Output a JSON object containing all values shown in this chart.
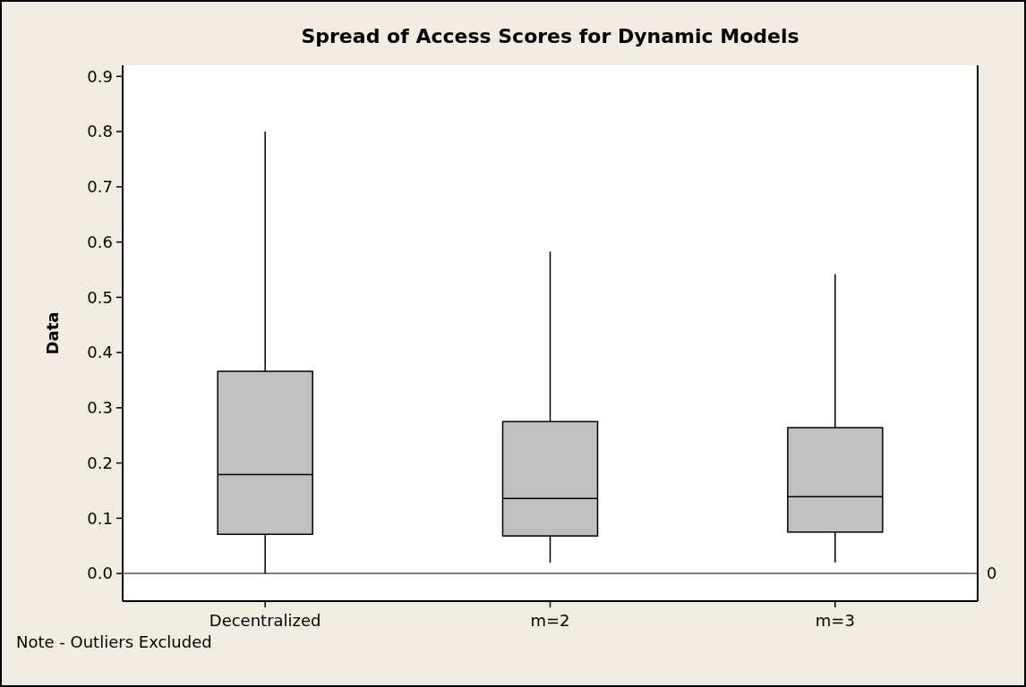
{
  "chart_data": {
    "type": "box",
    "title": "Spread of Access Scores for Dynamic Models",
    "ylabel": "Data",
    "categories": [
      "Decentralized",
      "m=2",
      "m=3"
    ],
    "color": "#c0c0c0",
    "boxes": [
      {
        "low": 0,
        "q1": 0.071,
        "median": 0.179,
        "q3": 0.366,
        "high": 0.8
      },
      {
        "low": 0.02,
        "q1": 0.068,
        "median": 0.136,
        "q3": 0.275,
        "high": 0.583
      },
      {
        "low": 0.02,
        "q1": 0.075,
        "median": 0.139,
        "q3": 0.264,
        "high": 0.542
      }
    ],
    "ylim": [
      -0.05,
      0.92
    ],
    "yticks": [
      {
        "value": 0,
        "label": "0.0"
      },
      0.1,
      0.2,
      0.3,
      0.4,
      0.5,
      0.6,
      0.7,
      0.8,
      0.9
    ],
    "ref_lines": [
      {
        "axis": "y",
        "value": 0,
        "label": "0",
        "color": "#555555"
      }
    ],
    "annotations": [
      "Note - Outliers Excluded"
    ],
    "grid": false
  }
}
